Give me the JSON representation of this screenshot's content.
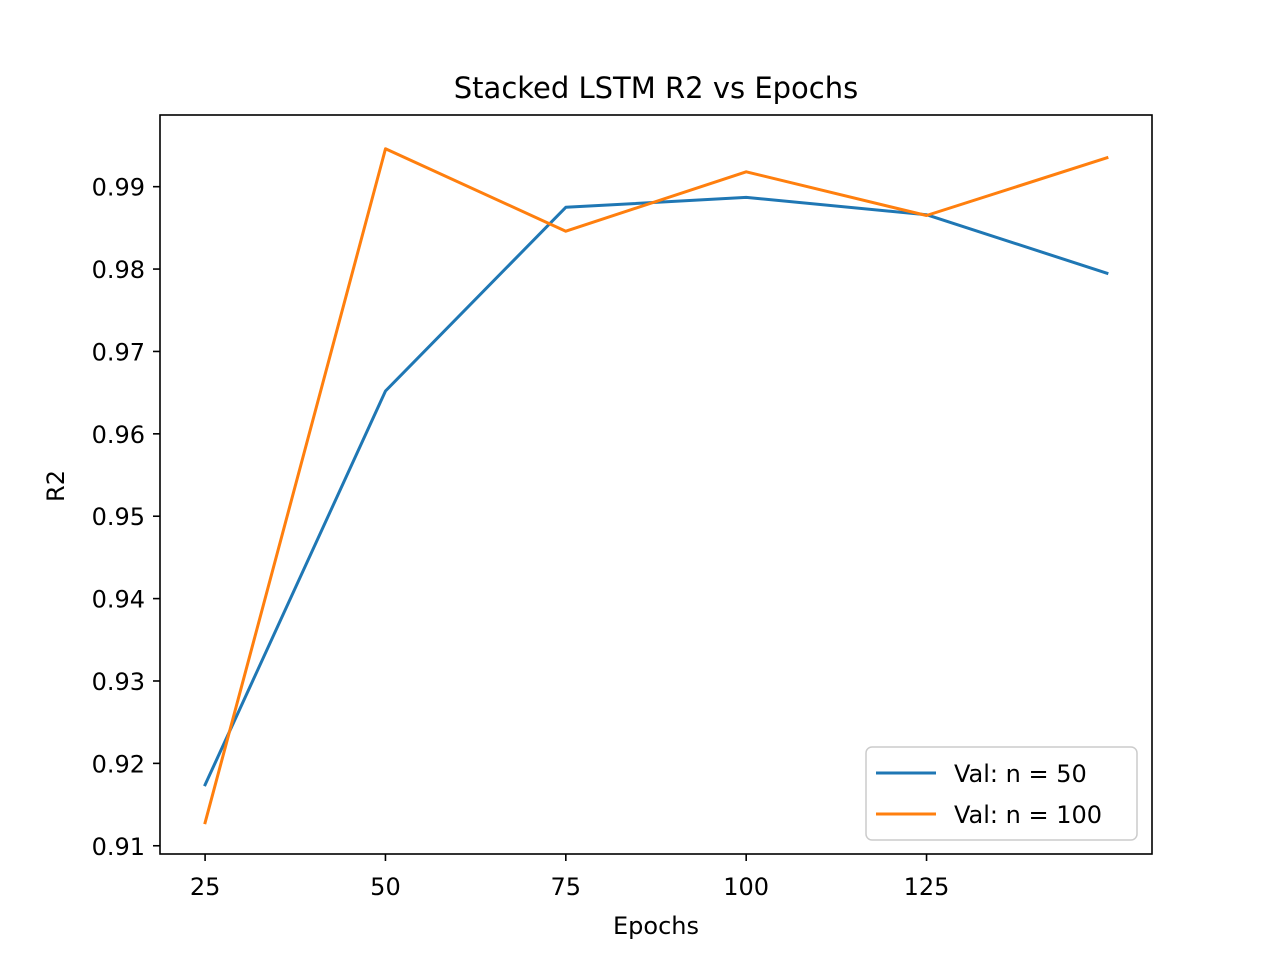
{
  "chart_data": {
    "type": "line",
    "title": "Stacked LSTM R2 vs Epochs",
    "xlabel": "Epochs",
    "ylabel": "R2",
    "x": [
      25,
      50,
      75,
      100,
      125,
      150
    ],
    "xticks": [
      "25",
      "50",
      "75",
      "100",
      "125"
    ],
    "xtick_values": [
      25,
      50,
      75,
      100,
      125
    ],
    "yticks": [
      "0.91",
      "0.92",
      "0.93",
      "0.94",
      "0.95",
      "0.96",
      "0.97",
      "0.98",
      "0.99"
    ],
    "ytick_values": [
      0.91,
      0.92,
      0.93,
      0.94,
      0.95,
      0.96,
      0.97,
      0.98,
      0.99
    ],
    "xlim": [
      18.75,
      156.25
    ],
    "ylim": [
      0.909,
      0.9987
    ],
    "grid": false,
    "legend_position": "lower-right",
    "series": [
      {
        "name": "Val: n = 50",
        "color": "#1f77b4",
        "values": [
          0.9174,
          0.9652,
          0.9875,
          0.9887,
          0.9866,
          0.9795
        ]
      },
      {
        "name": "Val: n = 100",
        "color": "#ff7f0e",
        "values": [
          0.9128,
          0.9946,
          0.9846,
          0.9918,
          0.9865,
          0.9935
        ]
      }
    ]
  }
}
